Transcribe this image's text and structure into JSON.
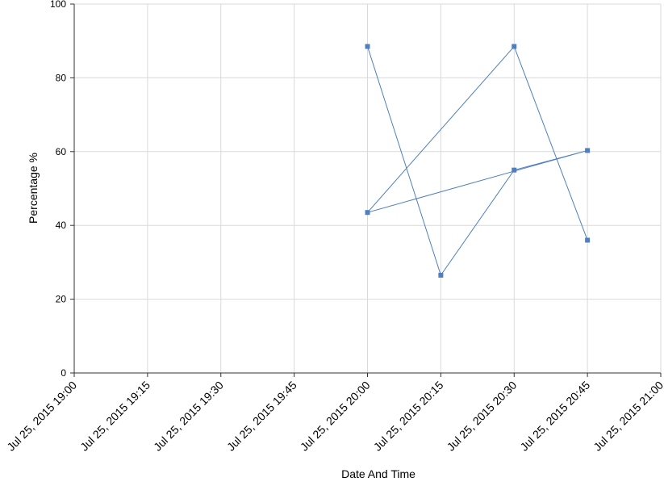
{
  "chart_data": {
    "type": "line",
    "xlabel": "Date And Time",
    "ylabel": "Percentage %",
    "x": [
      "2015-07-25T20:00",
      "2015-07-25T20:15",
      "2015-07-25T20:30",
      "2015-07-25T20:45",
      "2015-07-25T20:00",
      "2015-07-25T20:30",
      "2015-07-25T20:45"
    ],
    "values": [
      88.5,
      26.5,
      55,
      60.3,
      43.5,
      88.5,
      36
    ],
    "color": "#4f7fc0",
    "xlim": [
      "2015-07-25T19:00",
      "2015-07-25T21:00"
    ],
    "xticks": [
      {
        "value": "2015-07-25T19:00",
        "label": "Jul 25, 2015 19:00"
      },
      {
        "value": "2015-07-25T19:15",
        "label": "Jul 25, 2015 19:15"
      },
      {
        "value": "2015-07-25T19:30",
        "label": "Jul 25, 2015 19:30"
      },
      {
        "value": "2015-07-25T19:45",
        "label": "Jul 25, 2015 19:45"
      },
      {
        "value": "2015-07-25T20:00",
        "label": "Jul 25, 2015 20:00"
      },
      {
        "value": "2015-07-25T20:15",
        "label": "Jul 25, 2015 20:15"
      },
      {
        "value": "2015-07-25T20:30",
        "label": "Jul 25, 2015 20:30"
      },
      {
        "value": "2015-07-25T20:45",
        "label": "Jul 25, 2015 20:45"
      },
      {
        "value": "2015-07-25T21:00",
        "label": "Jul 25, 2015 21:00"
      }
    ],
    "ylim": [
      0,
      100
    ],
    "yticks": [
      0,
      20,
      40,
      60,
      80,
      100
    ],
    "grid": true
  }
}
